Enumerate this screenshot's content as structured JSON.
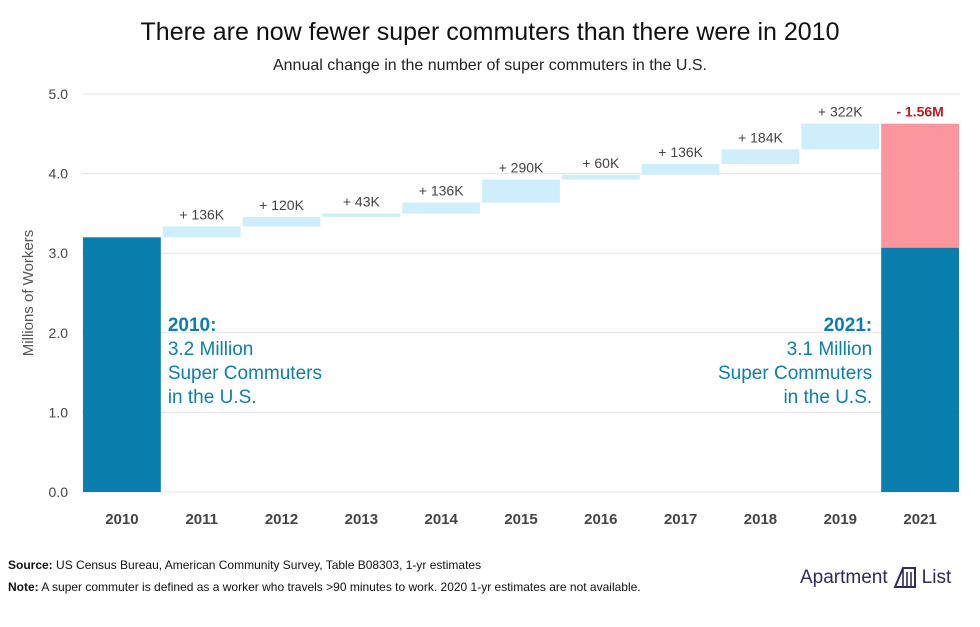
{
  "title": "There are now fewer super commuters than there were in 2010",
  "subtitle": "Annual change in the number of super commuters in the U.S.",
  "chart_data": {
    "type": "waterfall",
    "ylabel": "Millions of Workers",
    "ylim": [
      0,
      5
    ],
    "yticks": [
      "0.0",
      "1.0",
      "2.0",
      "3.0",
      "4.0",
      "5.0"
    ],
    "categories": [
      "2010",
      "2011",
      "2012",
      "2013",
      "2014",
      "2015",
      "2016",
      "2017",
      "2018",
      "2019",
      "2021"
    ],
    "start": {
      "year": "2010",
      "value": 3.2
    },
    "changes": [
      {
        "year": "2011",
        "value": 0.136,
        "label": "+ 136K"
      },
      {
        "year": "2012",
        "value": 0.12,
        "label": "+ 120K"
      },
      {
        "year": "2013",
        "value": 0.043,
        "label": "+ 43K"
      },
      {
        "year": "2014",
        "value": 0.136,
        "label": "+ 136K"
      },
      {
        "year": "2015",
        "value": 0.29,
        "label": "+ 290K"
      },
      {
        "year": "2016",
        "value": 0.06,
        "label": "+ 60K"
      },
      {
        "year": "2017",
        "value": 0.136,
        "label": "+ 136K"
      },
      {
        "year": "2018",
        "value": 0.184,
        "label": "+ 184K"
      },
      {
        "year": "2019",
        "value": 0.322,
        "label": "+ 322K"
      }
    ],
    "drop": {
      "year": "2021",
      "value": -1.56,
      "label": "- 1.56M"
    },
    "end": {
      "year": "2021",
      "value": 3.07
    },
    "annotation_2010": {
      "heading": "2010:",
      "lines": [
        "3.2 Million",
        "Super Commuters",
        "in the U.S."
      ]
    },
    "annotation_2021": {
      "heading": "2021:",
      "lines": [
        "3.1 Million",
        "Super Commuters",
        "in the U.S."
      ]
    },
    "colors": {
      "total": "#0a7fad",
      "increase": "#cdeefa",
      "decrease": "#fc969e",
      "decrease_label": "#c0181f",
      "annotation": "#0a7fad",
      "grid": "#e3e3e3",
      "axis_text": "#444444",
      "change_text": "#444444"
    }
  },
  "footer": {
    "source_label": "Source:",
    "source_text": " US Census Bureau, American Community Survey, Table B08303, 1-yr estimates",
    "note_label": "Note:",
    "note_text": " A super commuter is defined as a worker who travels >90 minutes to work. 2020 1-yr estimates are not available."
  },
  "logo": {
    "word1": "Apartment",
    "word2": "List"
  }
}
